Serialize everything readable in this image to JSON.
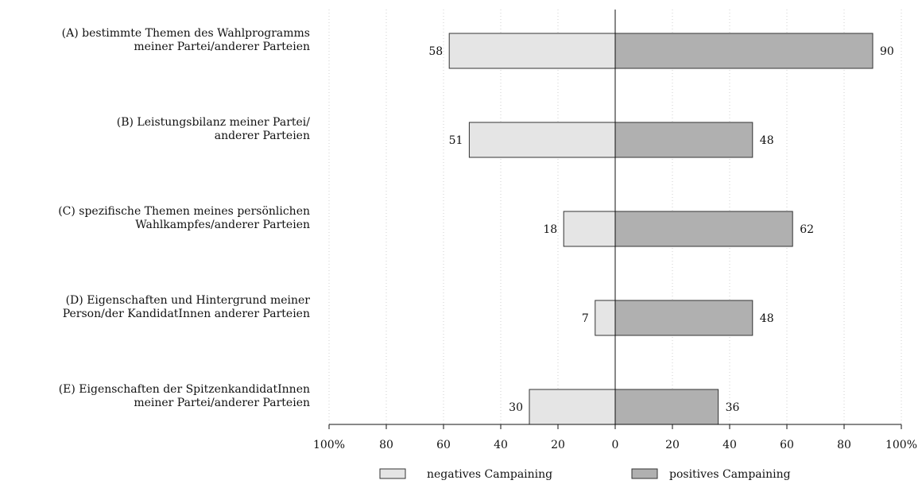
{
  "chart_data": {
    "type": "bar",
    "orientation": "horizontal-diverging",
    "categories": [
      [
        "(A) bestimmte Themen des Wahlprogramms",
        "meiner Partei/anderer Parteien"
      ],
      [
        "(B) Leistungsbilanz meiner Partei/",
        "anderer Parteien"
      ],
      [
        "(C) spezifische Themen meines persönlichen",
        "Wahlkampfes/anderer Parteien"
      ],
      [
        "(D) Eigenschaften und Hintergrund meiner",
        "Person/der KandidatInnen anderer Parteien"
      ],
      [
        "(E) Eigenschaften der SpitzenkandidatInnen",
        "meiner Partei/anderer Parteien"
      ]
    ],
    "series": [
      {
        "name": "negatives Campaining",
        "side": "left",
        "color": "#e5e5e5",
        "values": [
          58,
          51,
          18,
          7,
          30
        ]
      },
      {
        "name": "positives Campaining",
        "side": "right",
        "color": "#b0b0b0",
        "values": [
          90,
          48,
          62,
          48,
          36
        ]
      }
    ],
    "xlim": [
      -100,
      100
    ],
    "xticks": [
      -100,
      -80,
      -60,
      -40,
      -20,
      0,
      20,
      40,
      60,
      80,
      100
    ],
    "xtick_labels": [
      "100%",
      "80",
      "60",
      "40",
      "20",
      "0",
      "20",
      "40",
      "60",
      "80",
      "100%"
    ],
    "grid": "vertical-dotted",
    "legend": "bottom",
    "title": "",
    "xlabel": "",
    "ylabel": ""
  }
}
